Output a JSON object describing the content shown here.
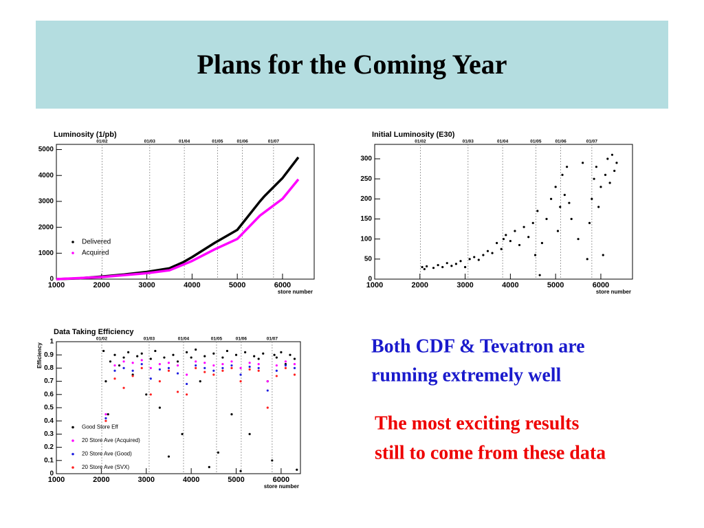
{
  "slide_title": "Plans for the Coming Year",
  "text_blue": [
    "Both CDF & Tevatron are",
    "running extremely well"
  ],
  "text_red": [
    "The most exciting results",
    "still to come from these data"
  ],
  "chart_data": [
    {
      "type": "line",
      "title": "Luminosity (1/pb)",
      "x_label": "store number",
      "xlim": [
        1000,
        6700
      ],
      "xticks": [
        1000,
        2000,
        3000,
        4000,
        5000,
        6000
      ],
      "ylim": [
        0,
        5200
      ],
      "yticks": [
        0,
        1000,
        2000,
        3000,
        4000,
        5000
      ],
      "markers": [
        {
          "x": 2010,
          "label": "01/02"
        },
        {
          "x": 3064,
          "label": "01/03"
        },
        {
          "x": 3829,
          "label": "01/04"
        },
        {
          "x": 4563,
          "label": "01/05"
        },
        {
          "x": 5113,
          "label": "01/06"
        },
        {
          "x": 5801,
          "label": "01/07"
        }
      ],
      "legend": "lower left",
      "series": [
        {
          "name": "Delivered",
          "color": "#000000",
          "x": [
            1000,
            1500,
            2000,
            2500,
            3000,
            3500,
            3800,
            4000,
            4500,
            5000,
            5500,
            5600,
            6000,
            6350
          ],
          "values": [
            0,
            30,
            100,
            180,
            280,
            420,
            650,
            850,
            1400,
            1900,
            3000,
            3200,
            3900,
            4700
          ]
        },
        {
          "name": "Acquired",
          "color": "#ff00ff",
          "x": [
            1000,
            2000,
            3000,
            3500,
            4000,
            4500,
            5000,
            5500,
            6000,
            6350
          ],
          "values": [
            0,
            80,
            230,
            340,
            700,
            1150,
            1550,
            2450,
            3100,
            3850
          ]
        }
      ]
    },
    {
      "type": "scatter",
      "title": "Initial Luminosity (E30)",
      "x_label": "store number",
      "xlim": [
        1000,
        6700
      ],
      "xticks": [
        1000,
        2000,
        3000,
        4000,
        5000,
        6000
      ],
      "ylim": [
        0,
        336
      ],
      "yticks": [
        0,
        50,
        100,
        150,
        200,
        250,
        300
      ],
      "markers": [
        {
          "x": 2010,
          "label": "01/02"
        },
        {
          "x": 3064,
          "label": "01/03"
        },
        {
          "x": 3829,
          "label": "01/04"
        },
        {
          "x": 4563,
          "label": "01/05"
        },
        {
          "x": 5113,
          "label": "01/06"
        },
        {
          "x": 5801,
          "label": "01/07"
        }
      ],
      "series": [
        {
          "color": "#000000",
          "x": [
            2050,
            2100,
            2150,
            2300,
            2400,
            2500,
            2600,
            2700,
            2800,
            2900,
            3000,
            3100,
            3200,
            3300,
            3400,
            3500,
            3600,
            3700,
            3800,
            3850,
            3900,
            4000,
            4100,
            4200,
            4300,
            4400,
            4500,
            4550,
            4600,
            4700,
            4800,
            4900,
            5000,
            5050,
            5100,
            5150,
            5200,
            5250,
            5300,
            5350,
            5600,
            5700,
            5750,
            5800,
            5850,
            5900,
            5950,
            6000,
            6050,
            6100,
            6150,
            6200,
            6250,
            6300,
            6350,
            4650,
            5500
          ],
          "values": [
            30,
            25,
            32,
            28,
            35,
            30,
            40,
            33,
            38,
            45,
            30,
            50,
            55,
            48,
            60,
            70,
            65,
            90,
            75,
            100,
            110,
            95,
            120,
            85,
            130,
            105,
            140,
            60,
            170,
            90,
            150,
            200,
            230,
            120,
            180,
            260,
            210,
            280,
            190,
            150,
            290,
            50,
            140,
            200,
            250,
            280,
            180,
            230,
            60,
            260,
            300,
            240,
            310,
            270,
            290,
            10,
            100
          ]
        }
      ]
    },
    {
      "type": "scatter",
      "title": "Data Taking Efficiency",
      "x_label": "store number",
      "y_label": "Efficiency",
      "xlim": [
        1000,
        6430
      ],
      "xticks": [
        1000,
        2000,
        3000,
        4000,
        5000,
        6000
      ],
      "ylim": [
        0,
        1
      ],
      "yticks": [
        0,
        0.1,
        0.2,
        0.3,
        0.4,
        0.5,
        0.6,
        0.7,
        0.8,
        0.9,
        1
      ],
      "markers": [
        {
          "x": 2010,
          "label": "01/02"
        },
        {
          "x": 3064,
          "label": "01/03"
        },
        {
          "x": 3829,
          "label": "01/04"
        },
        {
          "x": 4563,
          "label": "01/05"
        },
        {
          "x": 5113,
          "label": "01/06"
        },
        {
          "x": 5801,
          "label": "01/07"
        }
      ],
      "legend": "lower left",
      "series": [
        {
          "name": "Good Store Eff",
          "color": "#000000",
          "x": [
            2050,
            2100,
            2150,
            2200,
            2300,
            2400,
            2500,
            2600,
            2700,
            2800,
            2900,
            3000,
            3100,
            3200,
            3300,
            3400,
            3500,
            3600,
            3700,
            3800,
            3900,
            4000,
            4100,
            4200,
            4300,
            4400,
            4500,
            4600,
            4700,
            4800,
            4900,
            5000,
            5100,
            5200,
            5300,
            5400,
            5500,
            5600,
            5700,
            5800,
            5850,
            5900,
            6000,
            6100,
            6200,
            6300,
            6350
          ],
          "values": [
            0.93,
            0.7,
            0.45,
            0.85,
            0.9,
            0.82,
            0.88,
            0.92,
            0.75,
            0.89,
            0.91,
            0.6,
            0.87,
            0.93,
            0.5,
            0.88,
            0.13,
            0.9,
            0.85,
            0.3,
            0.92,
            0.88,
            0.94,
            0.7,
            0.89,
            0.05,
            0.91,
            0.16,
            0.88,
            0.93,
            0.45,
            0.9,
            0.02,
            0.92,
            0.3,
            0.89,
            0.87,
            0.91,
            0.7,
            0.1,
            0.9,
            0.88,
            0.92,
            0.83,
            0.9,
            0.87,
            0.03
          ]
        },
        {
          "name": "20 Store Ave (Acquired)",
          "color": "#ff00ff",
          "x": [
            2100,
            2300,
            2500,
            2700,
            2900,
            3100,
            3300,
            3500,
            3700,
            3900,
            4100,
            4300,
            4500,
            4700,
            4900,
            5100,
            5300,
            5500,
            5700,
            5900,
            6100,
            6300
          ],
          "values": [
            0.45,
            0.82,
            0.85,
            0.84,
            0.86,
            0.8,
            0.83,
            0.84,
            0.82,
            0.75,
            0.85,
            0.84,
            0.82,
            0.83,
            0.85,
            0.8,
            0.84,
            0.83,
            0.7,
            0.82,
            0.85,
            0.83
          ]
        },
        {
          "name": "20 Store Ave (Good)",
          "color": "#2020e0",
          "x": [
            2100,
            2300,
            2500,
            2700,
            2900,
            3100,
            3300,
            3500,
            3700,
            3900,
            4100,
            4300,
            4500,
            4700,
            4900,
            5100,
            5300,
            5500,
            5700,
            5900,
            6100,
            6300
          ],
          "values": [
            0.42,
            0.78,
            0.8,
            0.78,
            0.83,
            0.72,
            0.79,
            0.8,
            0.76,
            0.68,
            0.82,
            0.8,
            0.78,
            0.8,
            0.82,
            0.75,
            0.81,
            0.8,
            0.63,
            0.78,
            0.82,
            0.8
          ]
        },
        {
          "name": "20 Store Ave (SVX)",
          "color": "#ff2020",
          "x": [
            2100,
            2300,
            2500,
            2700,
            2900,
            3100,
            3300,
            3500,
            3700,
            3900,
            4100,
            4300,
            4500,
            4700,
            4900,
            5100,
            5300,
            5500,
            5700,
            5900,
            6100,
            6300
          ],
          "values": [
            0.4,
            0.72,
            0.65,
            0.74,
            0.8,
            0.6,
            0.7,
            0.78,
            0.62,
            0.6,
            0.8,
            0.77,
            0.75,
            0.78,
            0.8,
            0.7,
            0.79,
            0.78,
            0.5,
            0.74,
            0.8,
            0.75
          ]
        }
      ]
    }
  ]
}
